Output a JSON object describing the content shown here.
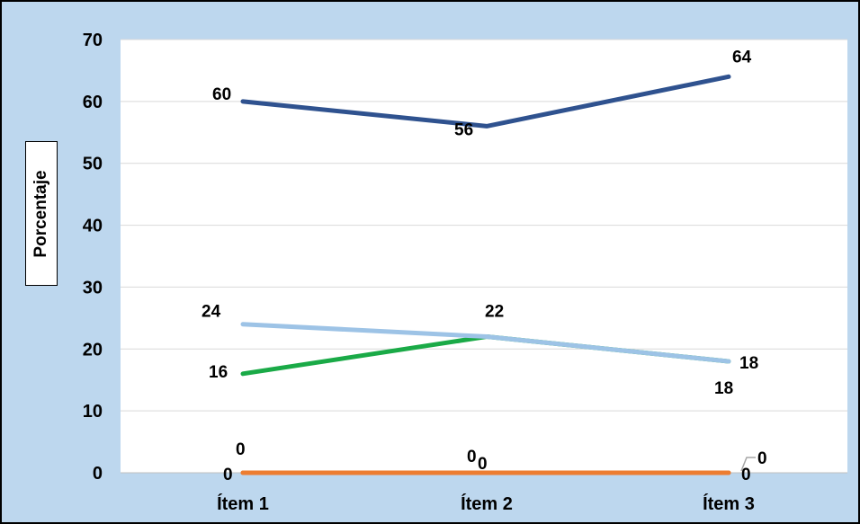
{
  "chart_data": {
    "type": "line",
    "categories": [
      "Ítem 1",
      "Ítem 2",
      "Ítem 3"
    ],
    "ylabel": "Porcentaje",
    "ylim": [
      0,
      70
    ],
    "yticks": [
      0,
      10,
      20,
      30,
      40,
      50,
      60,
      70
    ],
    "grid": true,
    "series": [
      {
        "values": [
          60,
          56,
          64
        ],
        "color": "#2f528f"
      },
      {
        "values": [
          24,
          22,
          18
        ],
        "color": "#9dc3e6"
      },
      {
        "values": [
          16,
          22,
          18
        ],
        "color": "#1aaa47"
      },
      {
        "values": [
          0,
          0,
          0
        ],
        "color": "#ed7d31"
      },
      {
        "values": [
          0,
          0,
          0
        ],
        "color": "#a5a5a5"
      }
    ],
    "data_labels": [
      {
        "text": "60",
        "series": 0,
        "index": 0
      },
      {
        "text": "56",
        "series": 0,
        "index": 1
      },
      {
        "text": "64",
        "series": 0,
        "index": 2
      },
      {
        "text": "24",
        "series": 1,
        "index": 0
      },
      {
        "text": "22",
        "series": 1,
        "index": 1
      },
      {
        "text": "18",
        "series": 1,
        "index": 2
      },
      {
        "text": "16",
        "series": 2,
        "index": 0
      },
      {
        "text": "18",
        "series": 2,
        "index": 2
      },
      {
        "text": "0",
        "series": 3,
        "index": 0
      },
      {
        "text": "0",
        "series": 3,
        "index": 1
      },
      {
        "text": "0",
        "series": 3,
        "index": 2
      },
      {
        "text": "0",
        "series": 4,
        "index": 0
      },
      {
        "text": "0",
        "series": 4,
        "index": 1
      },
      {
        "text": "0",
        "series": 4,
        "index": 2
      }
    ]
  }
}
